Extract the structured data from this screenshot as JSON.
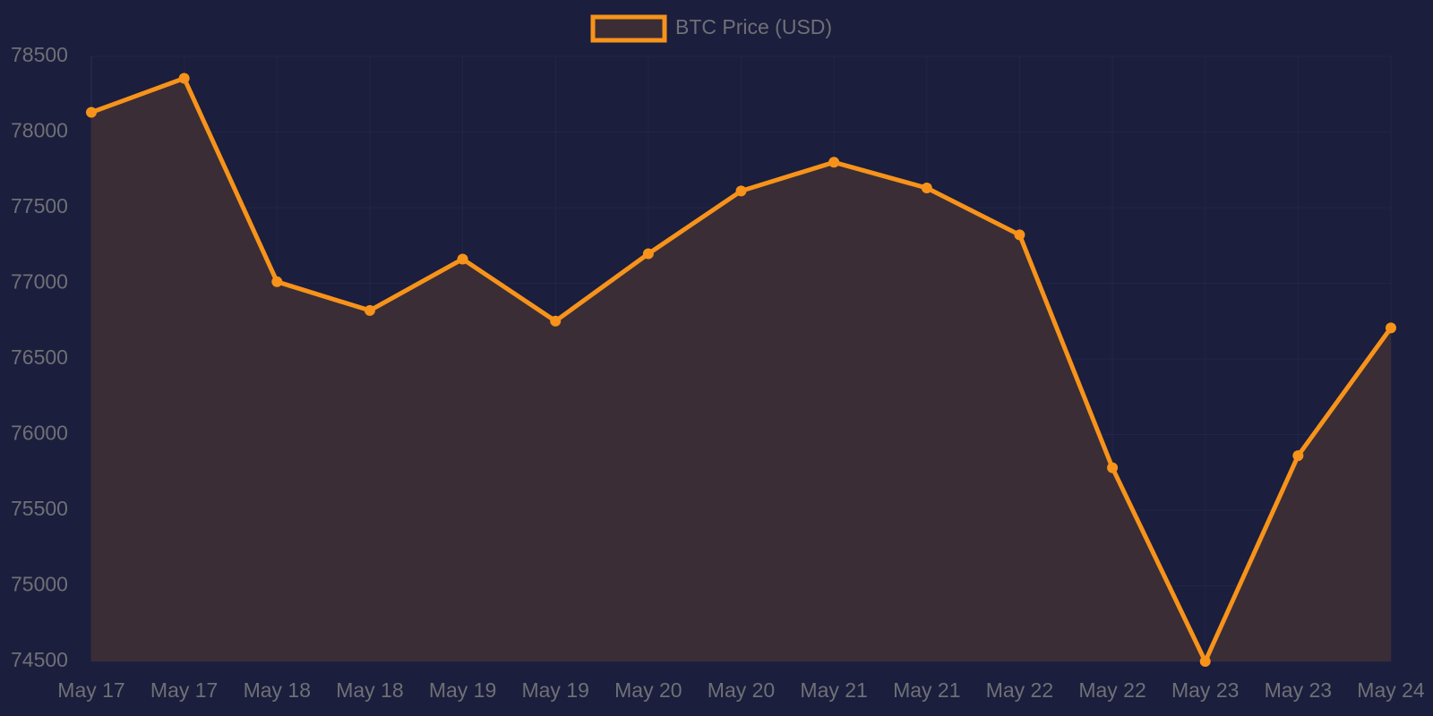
{
  "chart_data": {
    "type": "line",
    "categories": [
      "May 17",
      "May 17",
      "May 18",
      "May 18",
      "May 19",
      "May 19",
      "May 20",
      "May 20",
      "May 21",
      "May 21",
      "May 22",
      "May 22",
      "May 23",
      "May 23",
      "May 24"
    ],
    "series": [
      {
        "name": "BTC Price (USD)",
        "color": "#f7931a",
        "fill": "#3a2d36",
        "values": [
          78130,
          78355,
          77010,
          76820,
          77160,
          76750,
          77195,
          77610,
          77800,
          77630,
          77320,
          75780,
          74500,
          75860,
          76705
        ]
      }
    ],
    "ylim": [
      74500,
      78500
    ],
    "yticks": [
      74500,
      75000,
      75500,
      76000,
      76500,
      77000,
      77500,
      78000,
      78500
    ],
    "grid": true,
    "legend": "top"
  }
}
